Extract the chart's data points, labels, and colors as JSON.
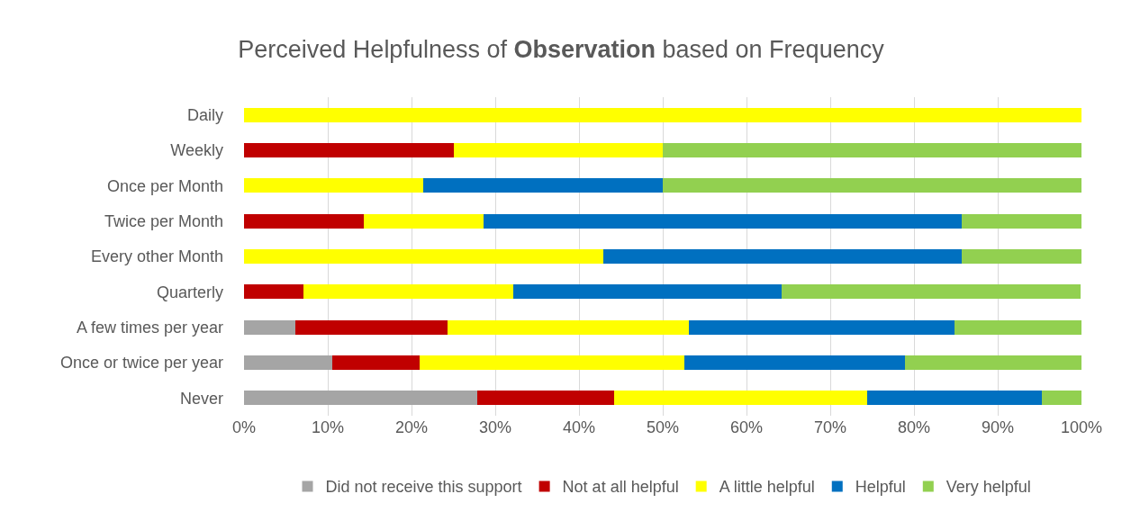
{
  "chart_data": {
    "type": "bar",
    "orientation": "horizontal",
    "stacked": true,
    "title": "Perceived Helpfulness of Observation based on Frequency",
    "categories": [
      "Daily",
      "Weekly",
      "Once per Month",
      "Twice per Month",
      "Every other Month",
      "Quarterly",
      "A few times per year",
      "Once or twice per year",
      "Never"
    ],
    "series": [
      {
        "name": "Did not receive this support",
        "color": "#a5a5a5",
        "values": [
          0,
          0,
          0,
          0,
          0,
          0,
          6.1,
          10.5,
          27.9
        ]
      },
      {
        "name": "Not at all helpful",
        "color": "#c00000",
        "values": [
          0,
          25,
          0,
          14.3,
          0,
          7.1,
          18.2,
          10.5,
          16.3
        ]
      },
      {
        "name": "A little helpful",
        "color": "#ffff00",
        "values": [
          100,
          25,
          21.4,
          14.3,
          42.9,
          25.0,
          28.8,
          31.6,
          30.2
        ]
      },
      {
        "name": "Helpful",
        "color": "#0070c0",
        "values": [
          0,
          0,
          28.6,
          57.1,
          42.8,
          32.1,
          31.7,
          26.3,
          20.9
        ]
      },
      {
        "name": "Very helpful",
        "color": "#92d050",
        "values": [
          0,
          50,
          50,
          14.3,
          14.3,
          35.7,
          15.2,
          21.1,
          4.7
        ]
      }
    ],
    "xlim": [
      0,
      100
    ],
    "xticks": [
      {
        "value": 0,
        "label": "0%"
      },
      {
        "value": 10,
        "label": "10%"
      },
      {
        "value": 20,
        "label": "20%"
      },
      {
        "value": 30,
        "label": "30%"
      },
      {
        "value": 40,
        "label": "40%"
      },
      {
        "value": 50,
        "label": "50%"
      },
      {
        "value": 60,
        "label": "60%"
      },
      {
        "value": 70,
        "label": "70%"
      },
      {
        "value": 80,
        "label": "80%"
      },
      {
        "value": 90,
        "label": "90%"
      },
      {
        "value": 100,
        "label": "100%"
      }
    ],
    "grid": "x",
    "legend": "bottom"
  }
}
